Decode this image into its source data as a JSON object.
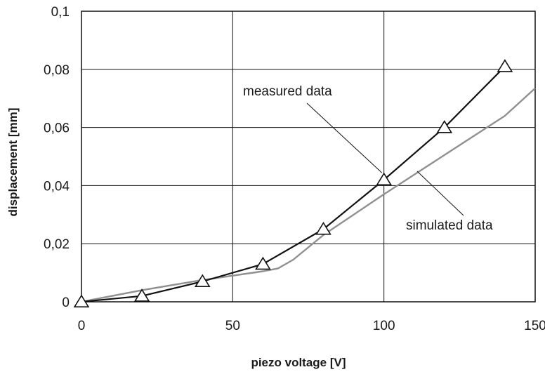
{
  "chart_data": {
    "type": "line",
    "title": "",
    "xlabel": "piezo voltage [V]",
    "ylabel": "displacement [mm]",
    "xlim": [
      0,
      150
    ],
    "ylim": [
      0,
      0.1
    ],
    "grid": true,
    "x_ticks": [
      0,
      50,
      100,
      150
    ],
    "x_tick_labels": [
      "0",
      "50",
      "100",
      "150"
    ],
    "y_ticks": [
      0,
      0.02,
      0.04,
      0.06,
      0.08,
      0.1
    ],
    "y_tick_labels": [
      "0",
      "0,02",
      "0,04",
      "0,06",
      "0,08",
      "0,1"
    ],
    "series": [
      {
        "name": "measured data",
        "marker": "triangle",
        "color": "#111111",
        "x": [
          0,
          20,
          40,
          60,
          80,
          100,
          120,
          140
        ],
        "y": [
          0.0,
          0.002,
          0.007,
          0.013,
          0.025,
          0.042,
          0.06,
          0.081
        ]
      },
      {
        "name": "simulated data",
        "marker": "none",
        "color": "#909090",
        "x": [
          0,
          20,
          40,
          60,
          65,
          70,
          80,
          100,
          120,
          140,
          150
        ],
        "y": [
          0.0,
          0.004,
          0.0075,
          0.0105,
          0.0115,
          0.0145,
          0.023,
          0.037,
          0.0505,
          0.064,
          0.0735
        ]
      }
    ],
    "annotations": [
      {
        "text": "measured data",
        "series": "measured data",
        "at_x": 100,
        "at_y": 0.042
      },
      {
        "text": "simulated data",
        "series": "simulated data",
        "at_x": 105,
        "at_y": 0.04
      }
    ]
  }
}
